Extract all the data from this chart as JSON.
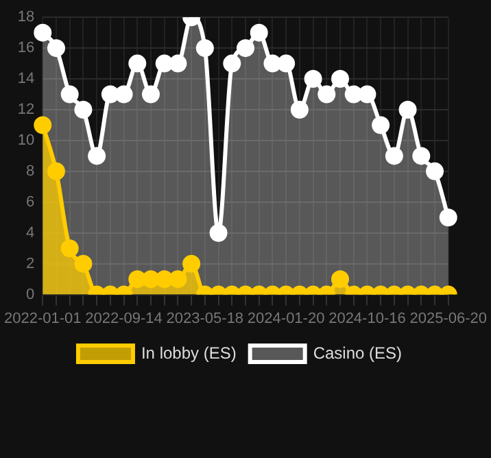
{
  "chart_data": {
    "type": "area",
    "categories": [
      "2022-01-01",
      null,
      null,
      null,
      null,
      null,
      "2022-09-14",
      null,
      null,
      null,
      null,
      null,
      "2023-05-18",
      null,
      null,
      null,
      null,
      null,
      "2024-01-20",
      null,
      null,
      null,
      null,
      null,
      "2024-10-16",
      null,
      null,
      null,
      null,
      null,
      "2025-06-20"
    ],
    "series": [
      {
        "name": "In lobby (ES)",
        "color": "#ffcc00",
        "values": [
          11,
          8,
          3,
          2,
          0,
          0,
          0,
          1,
          1,
          1,
          1,
          2,
          0,
          0,
          0,
          0,
          0,
          0,
          0,
          0,
          0,
          0,
          1,
          0,
          0,
          0,
          0,
          0,
          0,
          0,
          0
        ]
      },
      {
        "name": "Casino (ES)",
        "color": "#ffffff",
        "values": [
          17,
          16,
          13,
          12,
          9,
          13,
          13,
          15,
          13,
          15,
          15,
          18,
          16,
          4,
          15,
          16,
          17,
          15,
          15,
          12,
          14,
          13,
          14,
          13,
          13,
          11,
          9,
          12,
          9,
          8,
          5
        ]
      }
    ],
    "ylim": [
      0,
      18
    ],
    "yticks": [
      0,
      2,
      4,
      6,
      8,
      10,
      12,
      14,
      16,
      18
    ],
    "grid": true,
    "legend": "bottom",
    "marker": "circle"
  }
}
